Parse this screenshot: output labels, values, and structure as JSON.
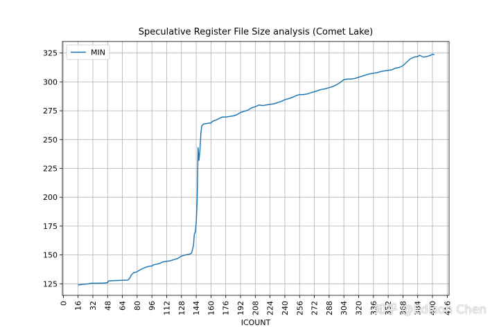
{
  "chart_data": {
    "type": "line",
    "title": "Speculative Register File Size analysis (Comet Lake)",
    "xlabel": "ICOUNT",
    "ylabel": "",
    "xlim": [
      -1,
      418
    ],
    "ylim": [
      115,
      335
    ],
    "xticks": [
      0,
      16,
      32,
      48,
      64,
      80,
      96,
      112,
      128,
      144,
      160,
      176,
      192,
      208,
      224,
      240,
      256,
      272,
      288,
      304,
      320,
      336,
      352,
      368,
      384,
      400,
      416
    ],
    "yticks": [
      125,
      150,
      175,
      200,
      225,
      250,
      275,
      300,
      325
    ],
    "grid": true,
    "legend_position": "upper-left",
    "series": [
      {
        "name": "MIN",
        "color": "#1f77b4",
        "points": [
          [
            16,
            124
          ],
          [
            20,
            124.5
          ],
          [
            24,
            124.8
          ],
          [
            28,
            125
          ],
          [
            30,
            125.5
          ],
          [
            36,
            125.5
          ],
          [
            44,
            125.7
          ],
          [
            48,
            126
          ],
          [
            49,
            127.5
          ],
          [
            56,
            127.8
          ],
          [
            64,
            128
          ],
          [
            70,
            128.2
          ],
          [
            72,
            130
          ],
          [
            74,
            133
          ],
          [
            76,
            134.5
          ],
          [
            80,
            135.5
          ],
          [
            84,
            137.5
          ],
          [
            88,
            139
          ],
          [
            92,
            140
          ],
          [
            96,
            140.5
          ],
          [
            98,
            141.5
          ],
          [
            104,
            142.5
          ],
          [
            108,
            144
          ],
          [
            112,
            144.5
          ],
          [
            116,
            145
          ],
          [
            120,
            146
          ],
          [
            124,
            147
          ],
          [
            128,
            149
          ],
          [
            132,
            150
          ],
          [
            136,
            150.5
          ],
          [
            139,
            151.5
          ],
          [
            141,
            158
          ],
          [
            142,
            168
          ],
          [
            143,
            170
          ],
          [
            144,
            178
          ],
          [
            145,
            195
          ],
          [
            146,
            243
          ],
          [
            147,
            232
          ],
          [
            148,
            240
          ],
          [
            149,
            255
          ],
          [
            150,
            262
          ],
          [
            152,
            263.5
          ],
          [
            156,
            264
          ],
          [
            160,
            264.5
          ],
          [
            162,
            266
          ],
          [
            166,
            267
          ],
          [
            168,
            268
          ],
          [
            172,
            269.5
          ],
          [
            176,
            269.5
          ],
          [
            180,
            270
          ],
          [
            184,
            270.5
          ],
          [
            188,
            271.5
          ],
          [
            192,
            273.5
          ],
          [
            196,
            274.5
          ],
          [
            200,
            275.5
          ],
          [
            204,
            277.5
          ],
          [
            208,
            278.5
          ],
          [
            212,
            280
          ],
          [
            216,
            279.5
          ],
          [
            220,
            280
          ],
          [
            224,
            280.5
          ],
          [
            228,
            281
          ],
          [
            232,
            282
          ],
          [
            236,
            283
          ],
          [
            240,
            284.5
          ],
          [
            244,
            285.5
          ],
          [
            248,
            286.5
          ],
          [
            252,
            288
          ],
          [
            256,
            289
          ],
          [
            260,
            289
          ],
          [
            264,
            289.5
          ],
          [
            268,
            290.5
          ],
          [
            272,
            291.5
          ],
          [
            276,
            292.5
          ],
          [
            280,
            293.5
          ],
          [
            284,
            294
          ],
          [
            288,
            295
          ],
          [
            292,
            296
          ],
          [
            296,
            297.5
          ],
          [
            300,
            299.5
          ],
          [
            304,
            302
          ],
          [
            308,
            302.5
          ],
          [
            312,
            302.5
          ],
          [
            316,
            303
          ],
          [
            320,
            304
          ],
          [
            324,
            305
          ],
          [
            328,
            306
          ],
          [
            332,
            307
          ],
          [
            336,
            307.5
          ],
          [
            340,
            308
          ],
          [
            344,
            309
          ],
          [
            348,
            309.5
          ],
          [
            352,
            310
          ],
          [
            356,
            310.5
          ],
          [
            360,
            312
          ],
          [
            364,
            312.5
          ],
          [
            368,
            314
          ],
          [
            372,
            317
          ],
          [
            376,
            320
          ],
          [
            380,
            321.5
          ],
          [
            384,
            322
          ],
          [
            386,
            323
          ],
          [
            390,
            321.5
          ],
          [
            394,
            322
          ],
          [
            398,
            323
          ],
          [
            400,
            324
          ],
          [
            402,
            323.5
          ]
        ]
      }
    ]
  },
  "watermark": "知乎 @Edison Chen"
}
